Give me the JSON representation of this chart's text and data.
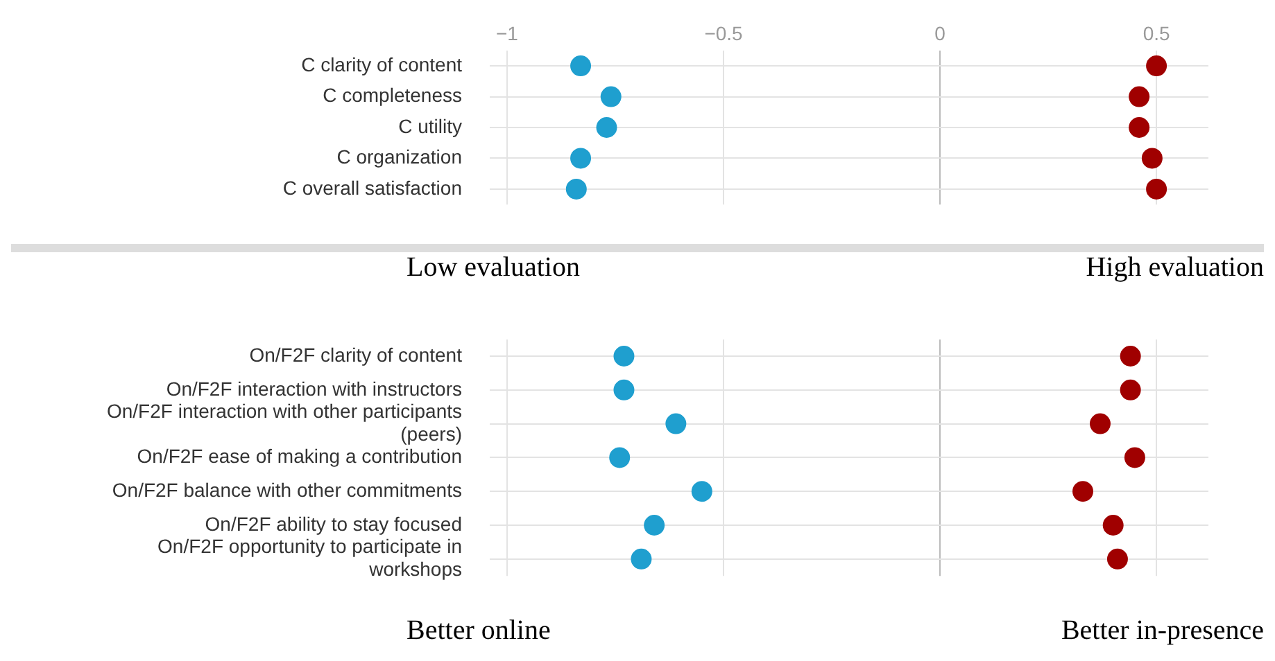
{
  "chart_data": [
    {
      "type": "scatter",
      "categories": [
        "C clarity of content",
        "C completeness",
        "C utility",
        "C organization",
        "C overall satisfaction"
      ],
      "series": [
        {
          "color": "#1f9fcf",
          "values": [
            -0.83,
            -0.76,
            -0.77,
            -0.83,
            -0.84
          ]
        },
        {
          "color": "#a00000",
          "values": [
            0.5,
            0.46,
            0.46,
            0.49,
            0.5
          ]
        }
      ],
      "orientation": "horizontal",
      "xlim": [
        -1.04,
        0.62
      ],
      "xticks": [
        {
          "value": -1,
          "label": "−1"
        },
        {
          "value": -0.5,
          "label": "−0.5"
        },
        0,
        0.5
      ],
      "grid": true,
      "legend": false,
      "marker": "circle",
      "annotations": [
        "Low evaluation",
        "High evaluation"
      ]
    },
    {
      "type": "scatter",
      "categories": [
        "On/F2F clarity of content",
        "On/F2F interaction with instructors",
        "On/F2F interaction with other participants (peers)",
        "On/F2F ease of making a contribution",
        "On/F2F balance with other commitments",
        "On/F2F ability to stay focused",
        "On/F2F opportunity to participate in workshops"
      ],
      "series": [
        {
          "color": "#1f9fcf",
          "values": [
            -0.73,
            -0.73,
            -0.61,
            -0.74,
            -0.55,
            -0.66,
            -0.69
          ]
        },
        {
          "color": "#a00000",
          "values": [
            0.44,
            0.44,
            0.37,
            0.45,
            0.33,
            0.4,
            0.41
          ]
        }
      ],
      "orientation": "horizontal",
      "xlim": [
        -1.04,
        0.62
      ],
      "xticks": [
        -1,
        -0.5,
        0,
        0.5
      ],
      "grid": true,
      "legend": false,
      "marker": "circle",
      "tick_labels": "y",
      "annotations": [
        "Better online",
        "Better in-presence"
      ]
    }
  ]
}
